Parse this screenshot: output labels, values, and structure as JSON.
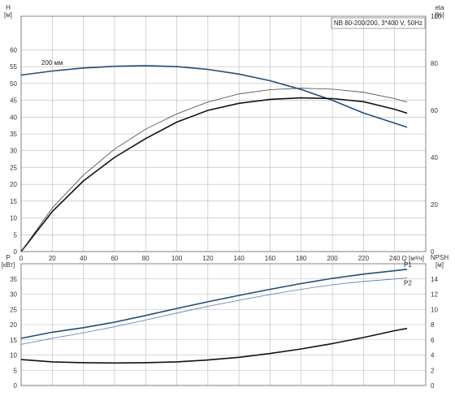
{
  "chart_data": [
    {
      "type": "line",
      "title": "NB 80-200/200, 3*400 V, 50Hz",
      "ylabel_left": "H\n[м]",
      "ylabel_right": "eta\n[%]",
      "xlabel": "Q [м³/ч]",
      "xlim": [
        0,
        260
      ],
      "ylim_left": [
        0,
        70
      ],
      "ylim_right": [
        0,
        100
      ],
      "x_ticks": [
        "0",
        "20",
        "40",
        "60",
        "80",
        "100",
        "120",
        "140",
        "160",
        "180",
        "200",
        "220",
        "240"
      ],
      "y_ticks_left": [
        "0",
        "5",
        "10",
        "15",
        "20",
        "25",
        "30",
        "35",
        "40",
        "45",
        "50",
        "55",
        "60"
      ],
      "y_ticks_right": [
        "0",
        "20",
        "40",
        "60",
        "80",
        "100"
      ],
      "grid": true,
      "annotations": [
        "200 мм"
      ],
      "series": [
        {
          "name": "200 мм",
          "axis": "left",
          "color": "#1f4e79",
          "x": [
            0,
            20,
            40,
            60,
            80,
            100,
            120,
            140,
            160,
            180,
            200,
            220,
            240,
            248
          ],
          "y": [
            52.5,
            53.7,
            54.6,
            55.1,
            55.3,
            55.0,
            54.2,
            52.8,
            50.8,
            48.2,
            45.0,
            41.2,
            38.2,
            37.0
          ]
        },
        {
          "axis": "right",
          "color": "#111111",
          "x": [
            0,
            20,
            40,
            60,
            80,
            100,
            120,
            140,
            160,
            180,
            200,
            220,
            240,
            248
          ],
          "y": [
            0,
            17,
            30,
            40,
            48,
            55,
            60,
            63,
            64.7,
            65.3,
            65.0,
            63.7,
            60.5,
            58.8
          ]
        },
        {
          "axis": "right",
          "color": "#444444",
          "x": [
            0,
            20,
            40,
            60,
            80,
            100,
            120,
            140,
            160,
            180,
            200,
            220,
            240,
            248
          ],
          "y": [
            0,
            18.5,
            32.5,
            43.5,
            52,
            58.5,
            63.5,
            67,
            68.8,
            69.4,
            69.0,
            67.7,
            65.0,
            63.5
          ]
        }
      ]
    },
    {
      "type": "line",
      "ylabel_left": "P\n[кВт]",
      "ylabel_right": "NPSH\n[м]",
      "xlim": [
        0,
        260
      ],
      "ylim_left": [
        0,
        40
      ],
      "ylim_right": [
        0,
        16
      ],
      "y_ticks_left": [
        "0",
        "5",
        "10",
        "15",
        "20",
        "25",
        "30",
        "35"
      ],
      "y_ticks_right": [
        "0",
        "2",
        "4",
        "6",
        "8",
        "10",
        "12",
        "14"
      ],
      "grid": true,
      "series": [
        {
          "name": "P1",
          "axis": "left",
          "color": "#1f4e79",
          "x": [
            0,
            20,
            40,
            60,
            80,
            100,
            120,
            140,
            160,
            180,
            200,
            220,
            240,
            248
          ],
          "y": [
            15.5,
            17.5,
            19.0,
            20.8,
            23.0,
            25.3,
            27.5,
            29.6,
            31.6,
            33.5,
            35.2,
            36.6,
            37.7,
            38.2
          ]
        },
        {
          "name": "P2",
          "axis": "left",
          "color": "#5577aa",
          "x": [
            0,
            20,
            40,
            60,
            80,
            100,
            120,
            140,
            160,
            180,
            200,
            220,
            240,
            248
          ],
          "y": [
            13.5,
            15.5,
            17.3,
            19.3,
            21.5,
            23.8,
            26.0,
            28.0,
            29.9,
            31.6,
            33.1,
            34.2,
            35.0,
            35.3
          ]
        },
        {
          "axis": "right",
          "color": "#111111",
          "x": [
            0,
            20,
            40,
            60,
            80,
            100,
            120,
            140,
            160,
            180,
            200,
            220,
            240,
            248
          ],
          "y": [
            3.4,
            3.1,
            3.0,
            2.95,
            3.0,
            3.1,
            3.35,
            3.7,
            4.2,
            4.8,
            5.5,
            6.3,
            7.2,
            7.5
          ]
        }
      ]
    }
  ]
}
